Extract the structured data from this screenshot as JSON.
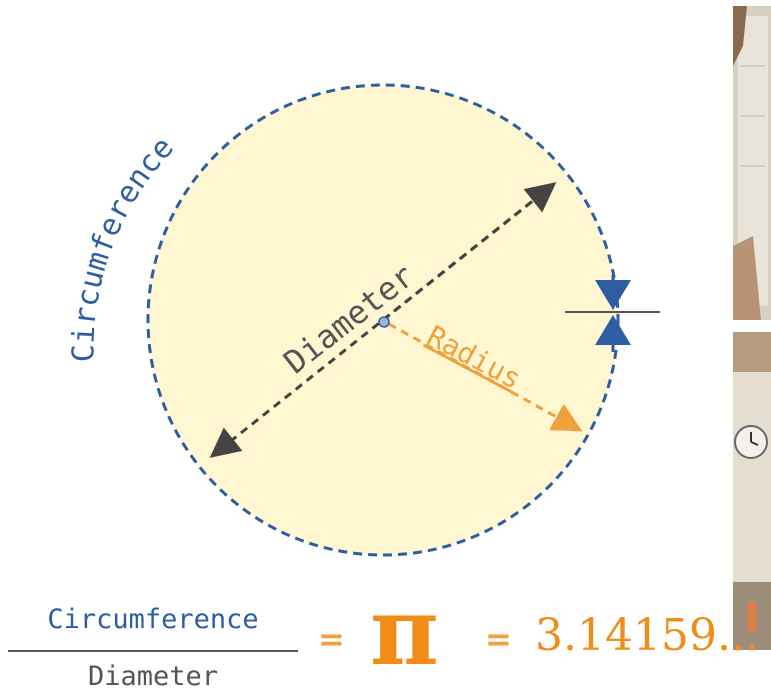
{
  "labels": {
    "circumference": "Circumference",
    "diameter": "Diameter",
    "radius": "Radius"
  },
  "formula": {
    "numerator": "Circumference",
    "denominator": "Diameter",
    "equals": "=",
    "pi_symbol": "π",
    "pi_value": "3.14159..."
  },
  "colors": {
    "circle_fill": "#fff7d1",
    "circle_stroke": "#2e5ea1",
    "diameter": "#444444",
    "radius": "#f0a03c",
    "pi": "#f08c17"
  }
}
